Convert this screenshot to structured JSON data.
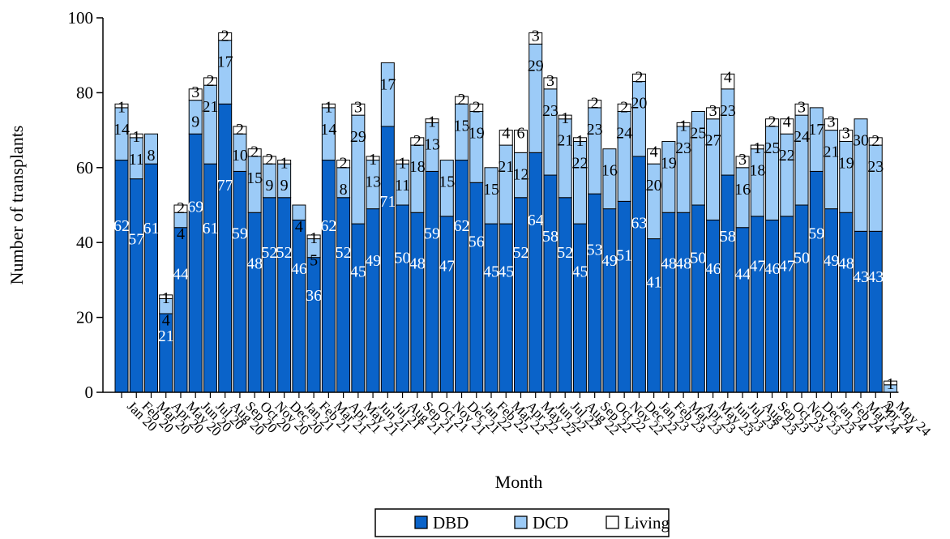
{
  "chart_data": {
    "type": "bar",
    "stacked": true,
    "title": "",
    "xlabel": "Month",
    "ylabel": "Number of transplants",
    "ylim": [
      0,
      100
    ],
    "yticks": [
      0,
      20,
      40,
      60,
      80,
      100
    ],
    "legend_position": "bottom",
    "grid": false,
    "categories": [
      "Jan 20",
      "Feb 20",
      "Mar 20",
      "Apr 20",
      "May 20",
      "Jun 20",
      "Jul 20",
      "Aug 20",
      "Sep 20",
      "Oct 20",
      "Nov 20",
      "Dec 20",
      "Jan 21",
      "Feb 21",
      "Mar 21",
      "Apr 21",
      "May 21",
      "Jun 21",
      "Jul 21",
      "Aug 21",
      "Sep 21",
      "Oct 21",
      "Nov 21",
      "Dec 21",
      "Jan 22",
      "Feb 22",
      "Mar 22",
      "Apr 22",
      "May 22",
      "Jun 22",
      "Jul 22",
      "Aug 22",
      "Sep 22",
      "Oct 22",
      "Nov 22",
      "Dec 22",
      "Jan 23",
      "Feb 23",
      "Mar 23",
      "Apr 23",
      "May 23",
      "Jun 23",
      "Jul 23",
      "Aug 23",
      "Sep 23",
      "Oct 23",
      "Nov 23",
      "Dec 23",
      "Jan 24",
      "Feb 24",
      "Mar 24",
      "Apr 24",
      "May 24"
    ],
    "series": [
      {
        "name": "DBD",
        "color": "#0a63c9",
        "label_color": "#ffffff",
        "values": [
          62,
          57,
          61,
          21,
          44,
          69,
          61,
          77,
          59,
          48,
          52,
          52,
          46,
          36,
          62,
          52,
          45,
          49,
          71,
          50,
          48,
          59,
          47,
          62,
          56,
          45,
          45,
          52,
          64,
          58,
          52,
          45,
          53,
          49,
          51,
          63,
          41,
          48,
          48,
          50,
          46,
          58,
          44,
          47,
          46,
          47,
          50,
          59,
          49,
          48,
          43,
          43,
          0
        ]
      },
      {
        "name": "DCD",
        "color": "#9ccbf7",
        "label_color": "#000000",
        "values": [
          14,
          11,
          8,
          4,
          4,
          9,
          21,
          17,
          10,
          15,
          9,
          9,
          4,
          5,
          14,
          8,
          29,
          13,
          17,
          11,
          18,
          13,
          15,
          15,
          19,
          15,
          21,
          12,
          29,
          23,
          21,
          22,
          23,
          16,
          24,
          20,
          20,
          19,
          23,
          25,
          27,
          23,
          16,
          18,
          25,
          22,
          24,
          17,
          21,
          19,
          30,
          23,
          2
        ]
      },
      {
        "name": "Living",
        "color": "#ffffff",
        "label_color": "#000000",
        "values": [
          1,
          1,
          0,
          1,
          2,
          3,
          2,
          2,
          2,
          2,
          2,
          1,
          0,
          1,
          1,
          2,
          3,
          1,
          0,
          1,
          2,
          1,
          0,
          2,
          2,
          0,
          4,
          6,
          3,
          3,
          1,
          1,
          2,
          0,
          2,
          2,
          4,
          0,
          1,
          0,
          3,
          4,
          3,
          1,
          2,
          4,
          3,
          0,
          3,
          3,
          0,
          2,
          1
        ]
      }
    ]
  },
  "legend": {
    "items": [
      {
        "name": "DBD",
        "color": "#0a63c9"
      },
      {
        "name": "DCD",
        "color": "#9ccbf7"
      },
      {
        "name": "Living",
        "color": "#ffffff"
      }
    ]
  }
}
